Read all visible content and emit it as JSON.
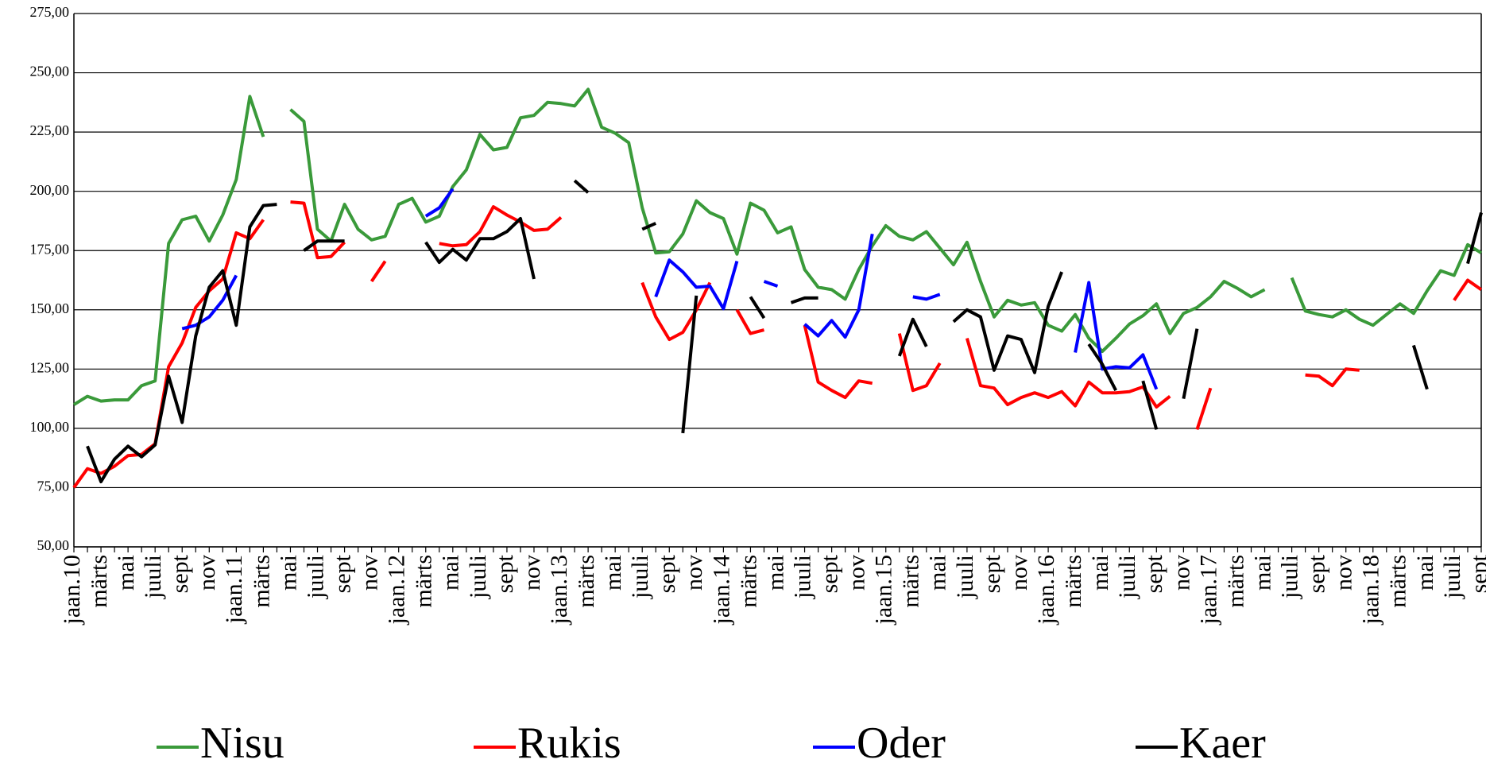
{
  "chart_data": {
    "type": "line",
    "categories": [
      "jaan.10",
      null,
      "märts",
      null,
      "mai",
      null,
      "juuli",
      null,
      "sept",
      null,
      "nov",
      null,
      "jaan.11",
      null,
      "märts",
      null,
      "mai",
      null,
      "juuli",
      null,
      "sept",
      null,
      "nov",
      null,
      "jaan.12",
      null,
      "märts",
      null,
      "mai",
      null,
      "juuli",
      null,
      "sept",
      null,
      "nov",
      null,
      "jaan.13",
      null,
      "märts",
      null,
      "mai",
      null,
      "juuli",
      null,
      "sept",
      null,
      "nov",
      null,
      "jaan.14",
      null,
      "märts",
      null,
      "mai",
      null,
      "juuli",
      null,
      "sept",
      null,
      "nov",
      null,
      "jaan.15",
      null,
      "märts",
      null,
      "mai",
      null,
      "juuli",
      null,
      "sept",
      null,
      "nov",
      null,
      "jaan.16",
      null,
      "märts",
      null,
      "mai",
      null,
      "juuli",
      null,
      "sept",
      null,
      "nov",
      null,
      "jaan.17",
      null,
      "märts",
      null,
      "mai",
      null,
      "juuli",
      null,
      "sept",
      null,
      "nov",
      null,
      "jaan.18",
      null,
      "märts",
      null,
      "mai",
      null,
      "juuli",
      null,
      "sept"
    ],
    "series": [
      {
        "name": "Nisu",
        "color": "#3a9a3a",
        "values": [
          110,
          113.5,
          111.5,
          112,
          112,
          118,
          120,
          178,
          188,
          189.5,
          179,
          190,
          205,
          240,
          223,
          null,
          234.5,
          229.5,
          184,
          179,
          194.5,
          184,
          179.5,
          181,
          194.5,
          197,
          187,
          189.5,
          202,
          209,
          224,
          217.5,
          218.5,
          231,
          232,
          237.5,
          237,
          236,
          243,
          227,
          224.5,
          220.5,
          193,
          174,
          174.5,
          182,
          196,
          191,
          188.5,
          173.5,
          195,
          192,
          182.5,
          185,
          167,
          159.5,
          158.5,
          154.5,
          167,
          177,
          185.5,
          181,
          179.5,
          183,
          176,
          169,
          178.5,
          162,
          147,
          154,
          152,
          153,
          143.5,
          141,
          148,
          138,
          132.5,
          138,
          144,
          147.5,
          152.5,
          140,
          148.5,
          151,
          155.5,
          162,
          159,
          155.5,
          158.5,
          null,
          163.5,
          149.5,
          148,
          147,
          150,
          146,
          143.5,
          148,
          152.5,
          148.5,
          158,
          166.5,
          164.5,
          177.5,
          174
        ]
      },
      {
        "name": "Rukis",
        "color": "#ff0000",
        "values": [
          75,
          83,
          81,
          84,
          88.5,
          89,
          93.5,
          126,
          136,
          151,
          158,
          163,
          182.5,
          180,
          188,
          null,
          195.5,
          195,
          172,
          172.5,
          178.5,
          null,
          162,
          170.5,
          null,
          null,
          null,
          178,
          177,
          177.5,
          183,
          193.5,
          190,
          187,
          183.5,
          184,
          189,
          null,
          null,
          null,
          null,
          null,
          161.5,
          147,
          137.5,
          140.5,
          150,
          161.5,
          null,
          150,
          140,
          141.5,
          null,
          null,
          143.5,
          119.5,
          116,
          113,
          120,
          119,
          null,
          140,
          116,
          118,
          127.5,
          null,
          138,
          118,
          117,
          110,
          113,
          115,
          113,
          115.5,
          109.5,
          119.5,
          115,
          115,
          115.5,
          117.5,
          109,
          113.5,
          null,
          99.5,
          117,
          null,
          null,
          null,
          null,
          null,
          null,
          122.5,
          122,
          118,
          125,
          124.5,
          null,
          null,
          null,
          null,
          null,
          null,
          154,
          162.5,
          158.5
        ]
      },
      {
        "name": "Oder",
        "color": "#0000ff",
        "values": [
          null,
          null,
          null,
          null,
          null,
          null,
          null,
          null,
          142,
          143.5,
          147,
          154,
          164.5,
          null,
          null,
          null,
          null,
          null,
          null,
          null,
          null,
          null,
          null,
          null,
          null,
          null,
          189.5,
          193,
          201,
          null,
          null,
          null,
          null,
          null,
          null,
          null,
          null,
          null,
          null,
          null,
          null,
          null,
          null,
          155.5,
          171,
          166,
          159.5,
          160,
          150.5,
          170.5,
          null,
          162,
          160,
          null,
          144,
          139,
          145.5,
          138.5,
          150,
          182,
          null,
          null,
          155.5,
          154.5,
          156.5,
          null,
          null,
          null,
          null,
          null,
          null,
          null,
          null,
          null,
          132,
          161.5,
          125,
          126,
          125.5,
          131,
          116.5,
          null,
          null,
          null,
          null,
          null,
          null,
          null,
          null,
          null,
          null,
          null,
          null,
          null,
          null,
          null,
          null,
          null,
          null,
          null,
          null,
          null,
          null,
          null,
          null
        ]
      },
      {
        "name": "Kaer",
        "color": "#000000",
        "values": [
          null,
          92.5,
          77.5,
          87,
          92.5,
          88,
          93,
          122,
          102.5,
          139,
          159.5,
          166.5,
          143.5,
          185,
          194,
          194.5,
          null,
          175,
          179,
          179,
          179,
          null,
          null,
          null,
          null,
          null,
          178.5,
          170,
          175.5,
          171,
          180,
          180,
          183,
          188.5,
          163,
          null,
          null,
          204.5,
          199.5,
          null,
          null,
          null,
          184,
          186.5,
          null,
          98,
          156,
          null,
          null,
          null,
          155.5,
          146.5,
          null,
          153,
          155,
          155,
          null,
          null,
          null,
          null,
          null,
          130.5,
          146,
          134.5,
          null,
          145,
          150,
          147,
          124.5,
          139,
          137.5,
          123.5,
          151.5,
          166,
          null,
          135.5,
          127,
          116,
          null,
          120,
          99.5,
          null,
          112.5,
          142,
          null,
          null,
          null,
          null,
          null,
          null,
          null,
          null,
          null,
          null,
          null,
          null,
          null,
          null,
          null,
          135,
          116.5,
          null,
          null,
          169.5,
          191
        ]
      }
    ],
    "ylim": [
      50,
      275
    ],
    "yticks": [
      {
        "value": 50,
        "label": "50,00"
      },
      {
        "value": 75,
        "label": "75,00"
      },
      {
        "value": 100,
        "label": "100,00"
      },
      {
        "value": 125,
        "label": "125,00"
      },
      {
        "value": 150,
        "label": "150,00"
      },
      {
        "value": 175,
        "label": "175,00"
      },
      {
        "value": 200,
        "label": "200,00"
      },
      {
        "value": 225,
        "label": "225,00"
      },
      {
        "value": 250,
        "label": "250,00"
      },
      {
        "value": 275,
        "label": "275,00"
      }
    ],
    "grid": true,
    "legend": "bottom"
  }
}
